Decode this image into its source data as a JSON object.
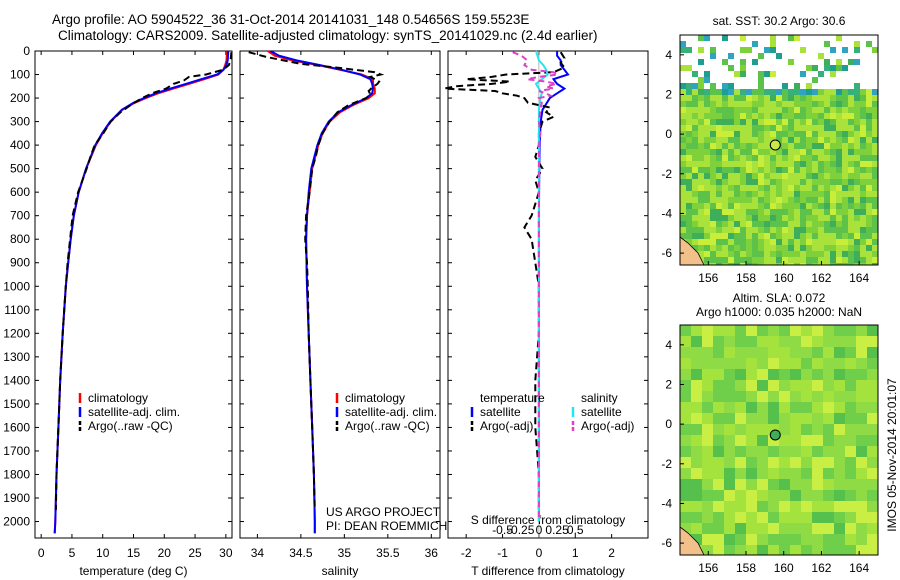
{
  "title_line1": "Argo profile: AO 5904522_36 31-Oct-2014 20141031_148 0.54656S 159.5523E",
  "title_line2": "Climatology: CARS2009. Satellite-adjusted climatology: synTS_20141029.nc (2.4d earlier)",
  "colors": {
    "climatology": "#ff0000",
    "satellite": "#0000ff",
    "argo": "#000000",
    "salinity_satellite": "#22e6f0",
    "salinity_argo": "#e040c8"
  },
  "chart_data": [
    {
      "type": "line",
      "xlabel": "temperature (deg C)",
      "xlim": [
        -1,
        31
      ],
      "xticks": [
        0,
        5,
        10,
        15,
        20,
        25,
        30
      ],
      "ylim": [
        0,
        2070
      ],
      "yticks": [
        0,
        100,
        200,
        300,
        400,
        500,
        600,
        700,
        800,
        900,
        1000,
        1100,
        1200,
        1300,
        1400,
        1500,
        1600,
        1700,
        1800,
        1900,
        2000
      ],
      "legend": [
        "climatology",
        "satellite-adj. clim.",
        "Argo(..raw -QC)"
      ],
      "series": [
        {
          "name": "climatology",
          "depth": [
            0,
            40,
            60,
            80,
            100,
            120,
            140,
            160,
            180,
            200,
            220,
            250,
            300,
            350,
            400,
            500,
            600,
            700,
            800,
            900,
            1000,
            1200,
            1400,
            1600,
            1800,
            2000,
            2050
          ],
          "values": [
            30.2,
            30.1,
            29.9,
            29.6,
            28.8,
            26.5,
            24.0,
            21.5,
            19.0,
            17.0,
            15.2,
            13.2,
            11.3,
            10.0,
            8.9,
            7.3,
            6.1,
            5.3,
            4.8,
            4.4,
            4.0,
            3.5,
            3.1,
            2.8,
            2.5,
            2.3,
            2.2
          ]
        },
        {
          "name": "satellite-adj. clim.",
          "depth": [
            0,
            40,
            60,
            80,
            100,
            120,
            140,
            160,
            180,
            200,
            220,
            250,
            300,
            350,
            400,
            500,
            600,
            700,
            800,
            900,
            1000,
            1200,
            1400,
            1600,
            1800,
            2000,
            2050
          ],
          "values": [
            30.4,
            30.3,
            30.1,
            29.6,
            28.6,
            26.0,
            23.5,
            21.0,
            18.6,
            16.7,
            15.0,
            13.1,
            11.2,
            9.9,
            8.8,
            7.3,
            6.1,
            5.3,
            4.8,
            4.4,
            4.0,
            3.5,
            3.1,
            2.8,
            2.5,
            2.3,
            2.2
          ]
        },
        {
          "name": "Argo(..raw -QC)",
          "depth": [
            5,
            30,
            60,
            80,
            100,
            110,
            125,
            140,
            160,
            180,
            200,
            225,
            260,
            300,
            350,
            400,
            450,
            500,
            600,
            700,
            800,
            900,
            1000,
            1200,
            1400,
            1600,
            1800,
            1950
          ],
          "values": [
            30.9,
            30.8,
            30.5,
            29.5,
            26.8,
            24.0,
            23.2,
            21.5,
            20.3,
            18.0,
            16.4,
            14.8,
            12.9,
            11.3,
            10.1,
            8.7,
            8.0,
            7.4,
            6.0,
            5.1,
            4.7,
            4.3,
            4.0,
            3.5,
            3.1,
            2.8,
            2.5,
            2.4
          ]
        }
      ],
      "annotations": []
    },
    {
      "type": "line",
      "xlabel": "salinity",
      "xlim": [
        33.8,
        36.1
      ],
      "xticks": [
        34,
        34.5,
        35,
        35.5,
        36
      ],
      "ylim": [
        0,
        2070
      ],
      "legend": [
        "climatology",
        "satellite-adj. clim.",
        "Argo(..raw -QC)"
      ],
      "series": [
        {
          "name": "climatology",
          "depth": [
            0,
            20,
            40,
            60,
            80,
            100,
            120,
            140,
            160,
            180,
            200,
            230,
            260,
            300,
            350,
            400,
            500,
            600,
            700,
            800,
            1000,
            1200,
            1400,
            1600,
            1800,
            2000,
            2050
          ],
          "values": [
            34.12,
            34.2,
            34.4,
            34.7,
            34.95,
            35.2,
            35.33,
            35.33,
            35.35,
            35.35,
            35.28,
            35.1,
            34.95,
            34.83,
            34.75,
            34.7,
            34.63,
            34.6,
            34.57,
            34.56,
            34.57,
            34.59,
            34.61,
            34.63,
            34.65,
            34.66,
            34.66
          ]
        },
        {
          "name": "satellite-adj. clim.",
          "depth": [
            0,
            20,
            40,
            60,
            80,
            100,
            120,
            140,
            160,
            180,
            200,
            230,
            260,
            300,
            350,
            400,
            500,
            600,
            700,
            800,
            1000,
            1200,
            1400,
            1600,
            1800,
            2000,
            2050
          ],
          "values": [
            34.15,
            34.25,
            34.45,
            34.72,
            34.97,
            35.18,
            35.3,
            35.32,
            35.33,
            35.32,
            35.25,
            35.08,
            34.93,
            34.82,
            34.74,
            34.69,
            34.62,
            34.59,
            34.57,
            34.56,
            34.57,
            34.59,
            34.61,
            34.63,
            34.65,
            34.66,
            34.66
          ]
        },
        {
          "name": "Argo(..raw -QC)",
          "depth": [
            5,
            15,
            25,
            40,
            55,
            70,
            90,
            100,
            110,
            120,
            130,
            140,
            155,
            170,
            185,
            200,
            230,
            260,
            300,
            350,
            400,
            450,
            500,
            600,
            700,
            800,
            900,
            1000,
            1200,
            1400,
            1600,
            1800,
            1950
          ],
          "values": [
            33.9,
            34.0,
            34.1,
            34.3,
            34.5,
            34.9,
            35.35,
            35.42,
            35.3,
            35.35,
            35.4,
            35.38,
            35.32,
            35.28,
            35.3,
            35.25,
            35.05,
            34.92,
            34.83,
            34.75,
            34.7,
            34.67,
            34.63,
            34.6,
            34.56,
            34.55,
            34.57,
            34.58,
            34.59,
            34.61,
            34.63,
            34.65,
            34.66
          ]
        }
      ],
      "annotations": [
        "US ARGO PROJECT",
        "PI: DEAN ROEMMICH"
      ]
    },
    {
      "type": "line",
      "xlabel": "T difference from climatology",
      "xlabel_top": "S difference from climatology",
      "xlim": [
        -2.5,
        3
      ],
      "xticks": [
        -2,
        -1,
        0,
        1,
        2
      ],
      "xticks_top": [
        -0.5,
        -0.25,
        0,
        0.25,
        0.5
      ],
      "ylim": [
        0,
        2070
      ],
      "legend_headers": [
        "temperature",
        "salinity"
      ],
      "legend": [
        "satellite",
        "Argo(-adj)",
        "satellite",
        "Argo(-adj)"
      ],
      "series": [
        {
          "name": "temperature satellite",
          "depth": [
            0,
            20,
            40,
            60,
            80,
            100,
            120,
            140,
            160,
            180,
            200,
            250,
            300,
            400,
            500,
            700,
            1000,
            1500,
            2000
          ],
          "values": [
            0.5,
            0.5,
            0.6,
            0.6,
            0.7,
            0.8,
            0.4,
            0.5,
            0.7,
            0.5,
            0.3,
            0.1,
            0.05,
            0.02,
            0.01,
            0.0,
            0.0,
            0.0,
            0.0
          ]
        },
        {
          "name": "temperature Argo(-adj)",
          "depth": [
            5,
            30,
            50,
            70,
            90,
            100,
            110,
            120,
            130,
            140,
            150,
            160,
            170,
            180,
            190,
            200,
            220,
            240,
            260,
            280,
            300,
            350,
            400,
            450,
            500,
            550,
            600,
            650,
            700,
            750,
            800,
            900,
            1000,
            1200,
            1400,
            1600,
            1800,
            1950
          ],
          "values": [
            0.6,
            0.7,
            0.6,
            0.7,
            0.4,
            -0.9,
            -1.3,
            -2.0,
            -0.8,
            -1.3,
            -2.3,
            -2.6,
            -1.2,
            -1.0,
            -0.6,
            -0.4,
            -0.3,
            0.3,
            0.2,
            0.4,
            0.1,
            0.0,
            0.0,
            -0.1,
            0.1,
            -0.1,
            0.0,
            -0.1,
            -0.2,
            -0.4,
            -0.2,
            -0.1,
            0.0,
            0.0,
            -0.1,
            -0.1,
            0.0,
            0.0
          ]
        },
        {
          "name": "salinity satellite",
          "depth": [
            0,
            20,
            40,
            60,
            80,
            100,
            120,
            140,
            160,
            180,
            200,
            250,
            300,
            400,
            500,
            700,
            1000,
            1500,
            2000
          ],
          "values": [
            -0.02,
            -0.01,
            0.0,
            0.03,
            0.05,
            0.06,
            0.02,
            -0.02,
            0.0,
            0.02,
            0.01,
            0.0,
            0.0,
            0.0,
            0.0,
            0.0,
            0.0,
            0.0,
            0.0
          ]
        },
        {
          "name": "salinity Argo(-adj)",
          "depth": [
            5,
            20,
            40,
            60,
            80,
            90,
            100,
            110,
            120,
            130,
            140,
            150,
            160,
            170,
            180,
            190,
            200,
            220,
            250,
            300,
            350,
            400,
            500,
            600,
            800,
            1000,
            1500,
            2000
          ],
          "values": [
            -0.18,
            -0.12,
            -0.08,
            -0.1,
            -0.05,
            0.1,
            0.13,
            0.0,
            -0.08,
            0.05,
            0.12,
            0.05,
            0.1,
            0.0,
            0.05,
            0.08,
            0.0,
            0.02,
            0.01,
            0.0,
            0.01,
            0.0,
            0.0,
            0.0,
            0.0,
            0.0,
            0.0,
            0.0
          ]
        }
      ]
    },
    {
      "type": "heatmap",
      "title": "sat. SST: 30.2 Argo: 30.6",
      "xlim": [
        154.5,
        165
      ],
      "ylim": [
        -6.6,
        5
      ],
      "xticks": [
        156,
        158,
        160,
        162,
        164
      ],
      "yticks": [
        -6,
        -4,
        -2,
        0,
        2,
        4
      ],
      "marker": {
        "lon": 159.5523,
        "lat": -0.54656
      }
    },
    {
      "type": "heatmap",
      "title": "Altim. SLA: 0.072",
      "subtitle": "Argo h1000: 0.035 h2000: NaN",
      "xlim": [
        154.5,
        165
      ],
      "ylim": [
        -6.6,
        5
      ],
      "xticks": [
        156,
        158,
        160,
        162,
        164
      ],
      "yticks": [
        -6,
        -4,
        -2,
        0,
        2,
        4
      ],
      "marker": {
        "lon": 159.5523,
        "lat": -0.54656
      }
    }
  ],
  "side_label": "IMOS 05-Nov-2014 20:01:07"
}
